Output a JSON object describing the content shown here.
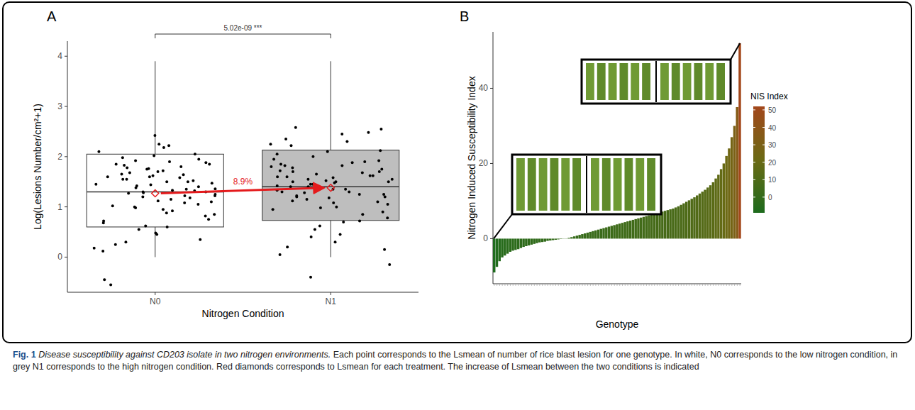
{
  "figure": {
    "caption_label": "Fig. 1",
    "caption_title": "Disease susceptibility against CD203 isolate in two nitrogen environments.",
    "caption_text": "Each point corresponds to the Lsmean of number of rice blast lesion for one genotype. In white, N0 corresponds to the low nitrogen condition, in grey N1 corresponds to the high nitrogen condition. Red diamonds corresponds to Lsmean for each treatment. The increase of Lsmean between the two conditions is indicated"
  },
  "chart_data": [
    {
      "type": "box",
      "panel": "A",
      "x_label": "Nitrogen Condition",
      "y_label": "Log(Lesions Number/cm²+1)",
      "categories": [
        "N0",
        "N1"
      ],
      "colors": [
        "#ffffff",
        "#bebebe"
      ],
      "ylim": [
        -0.7,
        4.3
      ],
      "yticks": [
        0,
        1,
        2,
        3,
        4
      ],
      "grid": false,
      "boxes": [
        {
          "whisker_low": 0,
          "q1": 0.6,
          "median": 1.3,
          "q3": 2.05,
          "whisker_high": 3.9,
          "mean": 1.27
        },
        {
          "whisker_low": 0,
          "q1": 0.73,
          "median": 1.4,
          "q3": 2.13,
          "whisker_high": 3.9,
          "mean": 1.38
        }
      ],
      "points": [
        [
          1.85,
          1.22,
          0.95,
          1.6,
          1.78,
          2.05,
          1.35,
          0.48,
          1.12,
          1.7,
          1.45,
          0.88,
          2.22,
          1.3,
          1.05,
          1.92,
          0.62,
          1.55,
          1.25,
          1.8,
          0.35,
          1.4,
          2.1,
          1.15,
          0.75,
          1.65,
          1.5,
          1.02,
          1.88,
          0.25,
          1.38,
          1.72,
          0.55,
          1.28,
          2.18,
          1.6,
          0.92,
          1.47,
          1.83,
          0.3,
          1.18,
          1.95,
          1.33,
          0.68,
          2.42,
          1.52,
          1.08,
          -0.45,
          1.75,
          1.22,
          0.82,
          1.62,
          1.42,
          2.02,
          0.12,
          1.3,
          1.68,
          0.98,
          1.9,
          1.5,
          0.45,
          1.27,
          1.85,
          1.1,
          -0.55,
          1.58,
          0.72,
          1.36,
          2.25,
          1.2,
          0.6,
          1.76,
          1.44,
          0.18,
          1.64,
          1.0,
          1.98,
          1.32,
          0.85,
          1.55
        ],
        [
          1.95,
          1.45,
          1.1,
          1.7,
          2.55,
          1.3,
          0.85,
          1.6,
          1.88,
          1.2,
          0.45,
          1.5,
          2.3,
          1.35,
          1.05,
          1.75,
          0.95,
          1.62,
          2.12,
          1.4,
          0.2,
          1.55,
          1.82,
          1.25,
          0.7,
          1.68,
          2.45,
          1.15,
          1.5,
          0.05,
          1.38,
          1.92,
          0.62,
          1.28,
          2.25,
          1.8,
          1.0,
          1.58,
          2.0,
          -0.4,
          1.42,
          1.72,
          0.78,
          1.33,
          2.58,
          1.48,
          1.18,
          0.4,
          1.85,
          1.65,
          0.9,
          1.52,
          1.2,
          2.22,
          -0.15,
          1.45,
          1.78,
          1.08,
          2.05,
          1.35,
          0.55,
          1.6,
          1.9,
          1.12,
          0.3,
          1.7,
          1.25,
          2.35,
          1.5,
          0.72,
          1.82,
          1.4,
          0.98,
          2.48,
          1.3,
          1.62,
          0.15,
          1.55,
          2.1,
          1.22
        ]
      ],
      "annotations": [
        {
          "text": "5.02e-09 ***"
        },
        {
          "text": "8.9%"
        }
      ]
    },
    {
      "type": "bar",
      "panel": "B",
      "x_label": "Genotype",
      "y_label": "Nitrogen Induced Susceptibility Index",
      "ylim": [
        -12,
        55
      ],
      "yticks": [
        0,
        20,
        40
      ],
      "tick_labels": "y",
      "values": [
        -9,
        -7.5,
        -6,
        -5,
        -4.5,
        -4,
        -3.5,
        -3.2,
        -3,
        -2.8,
        -2.5,
        -2.2,
        -2,
        -1.8,
        -1.6,
        -1.4,
        -1.2,
        -1,
        -0.9,
        -0.8,
        -0.6,
        -0.5,
        -0.4,
        -0.3,
        -0.2,
        -0.1,
        -0.05,
        0.05,
        0.2,
        0.4,
        0.6,
        0.8,
        1.0,
        1.2,
        1.4,
        1.6,
        1.8,
        2.0,
        2.2,
        2.4,
        2.6,
        2.8,
        3.0,
        3.2,
        3.4,
        3.6,
        3.8,
        4.0,
        4.2,
        4.4,
        4.6,
        4.8,
        5.0,
        5.2,
        5.4,
        5.6,
        5.8,
        6.0,
        6.2,
        6.4,
        6.6,
        6.8,
        7.0,
        7.2,
        7.4,
        7.6,
        7.8,
        8.0,
        8.3,
        8.6,
        9.0,
        9.4,
        9.8,
        10.2,
        10.6,
        11.0,
        11.5,
        12,
        12.5,
        13,
        13.6,
        14.2,
        15,
        16,
        17,
        18.5,
        20,
        22,
        24,
        27,
        30,
        35,
        52
      ],
      "colorbar": {
        "title": "NIS Index",
        "range": [
          -9,
          52
        ],
        "ticks": [
          0,
          10,
          20,
          30,
          40,
          50
        ],
        "colors": [
          "#1d6b1d",
          "#6b6a14",
          "#a3471b"
        ]
      }
    }
  ]
}
